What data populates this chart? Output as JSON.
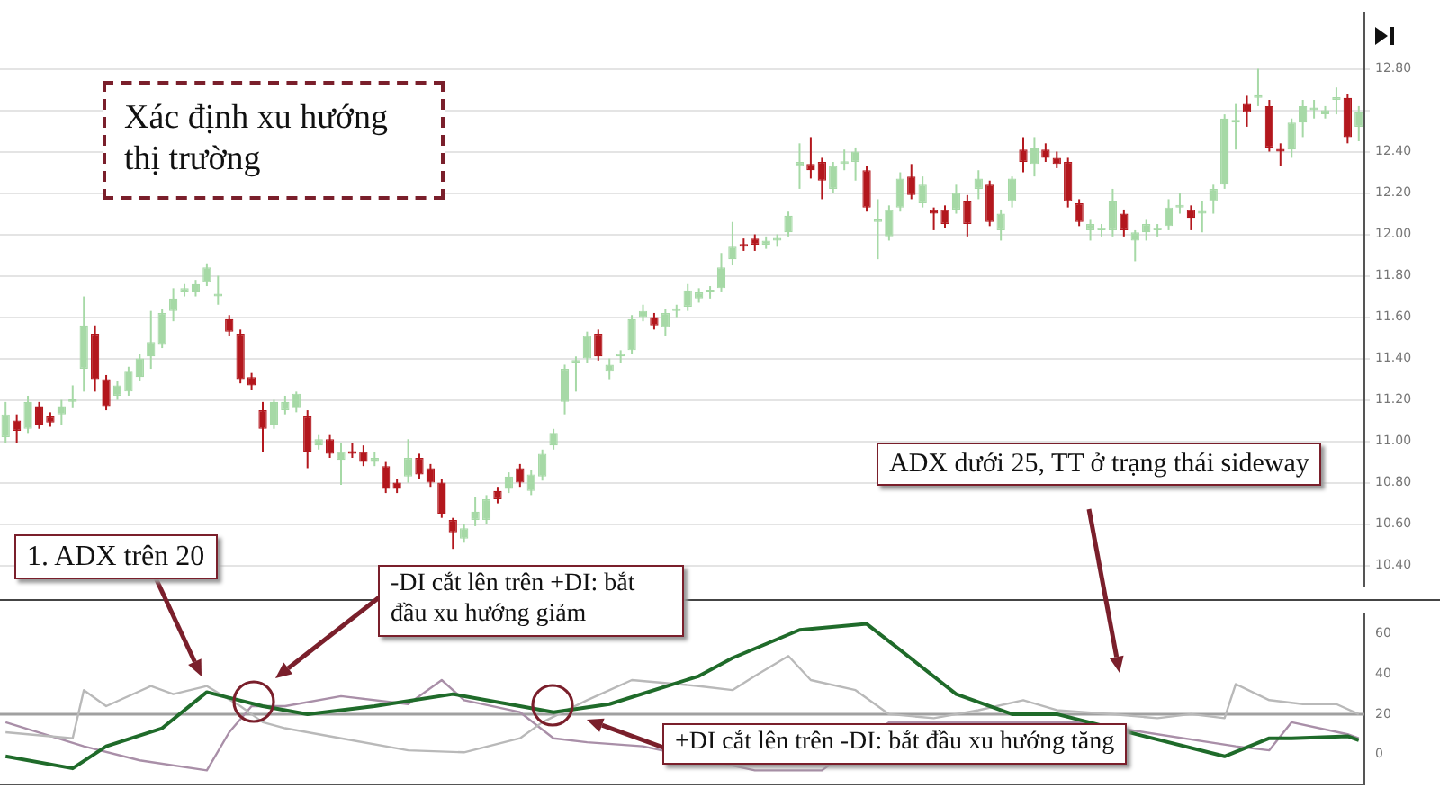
{
  "chart_data": [
    {
      "type": "candlestick",
      "annotations": [
        "Xác định xu hướng thị trường"
      ],
      "categories": [
        null,
        null,
        null,
        null,
        null,
        null,
        null,
        null,
        null,
        null,
        null,
        null,
        null,
        null,
        null,
        null,
        null,
        null,
        null,
        null,
        null,
        null,
        null,
        null,
        null,
        null,
        null,
        null,
        null,
        null,
        null,
        null,
        null,
        null,
        null,
        null,
        null,
        null,
        null,
        null,
        null,
        null,
        null,
        null,
        null,
        null,
        null,
        null,
        null,
        null,
        null,
        null,
        null,
        null,
        null,
        null,
        null,
        null,
        null,
        null,
        null,
        null,
        null,
        null,
        null,
        null,
        null,
        null,
        null,
        null,
        null,
        null,
        null,
        null,
        null,
        null,
        null,
        null,
        null,
        null,
        null,
        null,
        null,
        null,
        null,
        null,
        null,
        null,
        null,
        null,
        null,
        null,
        null,
        null,
        null,
        null,
        null,
        null,
        null,
        null,
        null,
        null,
        null,
        null,
        null,
        null,
        null,
        null,
        null,
        null,
        null,
        null,
        null,
        null,
        null,
        null,
        null,
        null,
        null,
        null,
        null,
        null
      ],
      "ohlc": [
        [
          11.02,
          11.19,
          10.99,
          11.13
        ],
        [
          11.1,
          11.13,
          10.99,
          11.05
        ],
        [
          11.06,
          11.22,
          11.04,
          11.19
        ],
        [
          11.17,
          11.19,
          11.06,
          11.08
        ],
        [
          11.12,
          11.14,
          11.07,
          11.09
        ],
        [
          11.13,
          11.2,
          11.08,
          11.17
        ],
        [
          11.19,
          11.27,
          11.16,
          11.19
        ],
        [
          11.35,
          11.7,
          11.24,
          11.56
        ],
        [
          11.52,
          11.56,
          11.24,
          11.3
        ],
        [
          11.3,
          11.32,
          11.15,
          11.17
        ],
        [
          11.22,
          11.29,
          11.2,
          11.27
        ],
        [
          11.24,
          11.36,
          11.22,
          11.34
        ],
        [
          11.31,
          11.42,
          11.29,
          11.4
        ],
        [
          11.41,
          11.63,
          11.35,
          11.48
        ],
        [
          11.47,
          11.64,
          11.45,
          11.62
        ],
        [
          11.63,
          11.74,
          11.58,
          11.69
        ],
        [
          11.72,
          11.76,
          11.7,
          11.74
        ],
        [
          11.72,
          11.78,
          11.7,
          11.76
        ],
        [
          11.77,
          11.86,
          11.75,
          11.84
        ],
        [
          11.7,
          11.8,
          11.66,
          11.7
        ],
        [
          11.59,
          11.61,
          11.51,
          11.53
        ],
        [
          11.52,
          11.54,
          11.28,
          11.3
        ],
        [
          11.31,
          11.33,
          11.25,
          11.27
        ],
        [
          11.15,
          11.19,
          10.95,
          11.06
        ],
        [
          11.08,
          11.2,
          11.06,
          11.19
        ],
        [
          11.15,
          11.22,
          11.13,
          11.19
        ],
        [
          11.16,
          11.24,
          11.14,
          11.23
        ],
        [
          11.12,
          11.15,
          10.87,
          10.95
        ],
        [
          10.98,
          11.03,
          10.96,
          11.01
        ],
        [
          11.01,
          11.03,
          10.92,
          10.94
        ],
        [
          10.91,
          10.99,
          10.79,
          10.95
        ],
        [
          10.95,
          10.99,
          10.92,
          10.94
        ],
        [
          10.95,
          10.98,
          10.88,
          10.9
        ],
        [
          10.9,
          10.95,
          10.88,
          10.92
        ],
        [
          10.88,
          10.9,
          10.75,
          10.77
        ],
        [
          10.8,
          10.82,
          10.75,
          10.77
        ],
        [
          10.83,
          11.01,
          10.8,
          10.92
        ],
        [
          10.92,
          10.94,
          10.82,
          10.84
        ],
        [
          10.87,
          10.89,
          10.78,
          10.8
        ],
        [
          10.8,
          10.82,
          10.63,
          10.65
        ],
        [
          10.62,
          10.63,
          10.48,
          10.56
        ],
        [
          10.53,
          10.6,
          10.51,
          10.58
        ],
        [
          10.62,
          10.73,
          10.59,
          10.66
        ],
        [
          10.62,
          10.74,
          10.6,
          10.72
        ],
        [
          10.76,
          10.78,
          10.7,
          10.72
        ],
        [
          10.77,
          10.85,
          10.75,
          10.83
        ],
        [
          10.87,
          10.89,
          10.78,
          10.8
        ],
        [
          10.76,
          10.86,
          10.74,
          10.84
        ],
        [
          10.83,
          10.96,
          10.81,
          10.94
        ],
        [
          10.98,
          11.06,
          10.96,
          11.04
        ],
        [
          11.19,
          11.37,
          11.13,
          11.35
        ],
        [
          11.38,
          11.41,
          11.24,
          11.38
        ],
        [
          11.4,
          11.53,
          11.38,
          11.51
        ],
        [
          11.52,
          11.54,
          11.39,
          11.41
        ],
        [
          11.34,
          11.4,
          11.3,
          11.37
        ],
        [
          11.41,
          11.44,
          11.38,
          11.41
        ],
        [
          11.44,
          11.61,
          11.42,
          11.59
        ],
        [
          11.6,
          11.66,
          11.58,
          11.63
        ],
        [
          11.6,
          11.62,
          11.54,
          11.56
        ],
        [
          11.55,
          11.64,
          11.51,
          11.62
        ],
        [
          11.63,
          11.66,
          11.6,
          11.63
        ],
        [
          11.65,
          11.76,
          11.63,
          11.73
        ],
        [
          11.69,
          11.74,
          11.67,
          11.72
        ],
        [
          11.72,
          11.75,
          11.69,
          11.72
        ],
        [
          11.74,
          11.91,
          11.72,
          11.84
        ],
        [
          11.88,
          12.06,
          11.85,
          11.94
        ],
        [
          11.95,
          11.98,
          11.92,
          11.94
        ],
        [
          11.98,
          12.0,
          11.92,
          11.95
        ],
        [
          11.95,
          11.99,
          11.93,
          11.97
        ],
        [
          11.97,
          12.0,
          11.94,
          11.97
        ],
        [
          12.01,
          12.11,
          11.99,
          12.09
        ],
        [
          12.33,
          12.44,
          12.22,
          12.35
        ],
        [
          12.34,
          12.47,
          12.27,
          12.31
        ],
        [
          12.35,
          12.37,
          12.17,
          12.26
        ],
        [
          12.22,
          12.35,
          12.2,
          12.33
        ],
        [
          12.34,
          12.41,
          12.31,
          12.35
        ],
        [
          12.35,
          12.42,
          12.26,
          12.4
        ],
        [
          12.31,
          12.33,
          12.11,
          12.13
        ],
        [
          12.06,
          12.17,
          11.88,
          12.06
        ],
        [
          11.99,
          12.14,
          11.97,
          12.12
        ],
        [
          12.13,
          12.3,
          12.11,
          12.27
        ],
        [
          12.28,
          12.34,
          12.17,
          12.19
        ],
        [
          12.15,
          12.28,
          12.13,
          12.24
        ],
        [
          12.12,
          12.13,
          12.02,
          12.1
        ],
        [
          12.12,
          12.14,
          12.03,
          12.05
        ],
        [
          12.12,
          12.24,
          12.1,
          12.2
        ],
        [
          12.16,
          12.19,
          11.99,
          12.05
        ],
        [
          12.22,
          12.31,
          12.17,
          12.27
        ],
        [
          12.24,
          12.26,
          12.04,
          12.06
        ],
        [
          12.02,
          12.12,
          11.97,
          12.1
        ],
        [
          12.16,
          12.28,
          12.13,
          12.27
        ],
        [
          12.41,
          12.47,
          12.3,
          12.35
        ],
        [
          12.34,
          12.47,
          12.28,
          12.42
        ],
        [
          12.41,
          12.44,
          12.35,
          12.37
        ],
        [
          12.37,
          12.4,
          12.32,
          12.34
        ],
        [
          12.35,
          12.37,
          12.13,
          12.16
        ],
        [
          12.15,
          12.17,
          12.04,
          12.06
        ],
        [
          12.02,
          12.07,
          11.97,
          12.05
        ],
        [
          12.02,
          12.05,
          11.99,
          12.02
        ],
        [
          12.02,
          12.22,
          11.99,
          12.16
        ],
        [
          12.1,
          12.12,
          11.99,
          12.02
        ],
        [
          11.97,
          12.02,
          11.87,
          12.01
        ],
        [
          12.01,
          12.07,
          11.97,
          12.05
        ],
        [
          12.02,
          12.05,
          11.99,
          12.02
        ],
        [
          12.04,
          12.17,
          12.02,
          12.13
        ],
        [
          12.13,
          12.2,
          12.1,
          12.13
        ],
        [
          12.12,
          12.14,
          12.02,
          12.08
        ],
        [
          12.1,
          12.16,
          12.01,
          12.1
        ],
        [
          12.16,
          12.24,
          12.1,
          12.22
        ],
        [
          12.24,
          12.58,
          12.22,
          12.56
        ],
        [
          12.54,
          12.63,
          12.41,
          12.54
        ],
        [
          12.63,
          12.67,
          12.52,
          12.59
        ],
        [
          12.66,
          12.8,
          12.62,
          12.66
        ],
        [
          12.62,
          12.65,
          12.4,
          12.42
        ],
        [
          12.41,
          12.44,
          12.33,
          12.4
        ],
        [
          12.41,
          12.56,
          12.37,
          12.54
        ],
        [
          12.54,
          12.65,
          12.47,
          12.62
        ],
        [
          12.6,
          12.65,
          12.56,
          12.6
        ],
        [
          12.58,
          12.62,
          12.56,
          12.6
        ],
        [
          12.65,
          12.71,
          12.58,
          12.65
        ],
        [
          12.66,
          12.68,
          12.44,
          12.47
        ],
        [
          12.52,
          12.62,
          12.45,
          12.59
        ]
      ],
      "colors": [
        "#a6d9a6",
        "#b3171d",
        "#a6d9a6",
        "#b3171d",
        "#b3171d",
        "#a6d9a6",
        "#a6d9a6",
        "#a6d9a6",
        "#b3171d",
        "#b3171d",
        "#a6d9a6",
        "#a6d9a6",
        "#a6d9a6",
        "#a6d9a6",
        "#a6d9a6",
        "#a6d9a6",
        "#a6d9a6",
        "#a6d9a6",
        "#a6d9a6",
        "#a6d9a6",
        "#b3171d",
        "#b3171d",
        "#b3171d",
        "#b3171d",
        "#a6d9a6",
        "#a6d9a6",
        "#a6d9a6",
        "#b3171d",
        "#a6d9a6",
        "#b3171d",
        "#a6d9a6",
        "#b3171d",
        "#b3171d",
        "#a6d9a6",
        "#b3171d",
        "#b3171d",
        "#a6d9a6",
        "#b3171d",
        "#b3171d",
        "#b3171d",
        "#b3171d",
        "#a6d9a6",
        "#a6d9a6",
        "#a6d9a6",
        "#b3171d",
        "#a6d9a6",
        "#b3171d",
        "#a6d9a6",
        "#a6d9a6",
        "#a6d9a6",
        "#a6d9a6",
        "#a6d9a6",
        "#a6d9a6",
        "#b3171d",
        "#a6d9a6",
        "#a6d9a6",
        "#a6d9a6",
        "#a6d9a6",
        "#b3171d",
        "#a6d9a6",
        "#a6d9a6",
        "#a6d9a6",
        "#a6d9a6",
        "#a6d9a6",
        "#a6d9a6",
        "#a6d9a6",
        "#b3171d",
        "#b3171d",
        "#a6d9a6",
        "#a6d9a6",
        "#a6d9a6",
        "#a6d9a6",
        "#b3171d",
        "#b3171d",
        "#a6d9a6",
        "#a6d9a6",
        "#a6d9a6",
        "#b3171d",
        "#a6d9a6",
        "#a6d9a6",
        "#a6d9a6",
        "#b3171d",
        "#a6d9a6",
        "#b3171d",
        "#b3171d",
        "#a6d9a6",
        "#b3171d",
        "#a6d9a6",
        "#b3171d",
        "#a6d9a6",
        "#a6d9a6",
        "#b3171d",
        "#a6d9a6",
        "#b3171d",
        "#b3171d",
        "#b3171d",
        "#b3171d",
        "#a6d9a6",
        "#a6d9a6",
        "#a6d9a6",
        "#b3171d",
        "#a6d9a6",
        "#a6d9a6",
        "#a6d9a6",
        "#a6d9a6",
        "#a6d9a6",
        "#b3171d",
        "#a6d9a6",
        "#a6d9a6",
        "#a6d9a6",
        "#a6d9a6",
        "#b3171d",
        "#a6d9a6",
        "#b3171d",
        "#b3171d",
        "#a6d9a6",
        "#a6d9a6",
        "#a6d9a6",
        "#a6d9a6",
        "#a6d9a6",
        "#b3171d",
        "#a6d9a6"
      ],
      "ylim": [
        10.3,
        13.07
      ],
      "yticks": [
        {
          "value": 10.4,
          "label": "10.40"
        },
        {
          "value": 10.6,
          "label": "10.60"
        },
        {
          "value": 10.8,
          "label": "10.80"
        },
        {
          "value": 11,
          "label": "11.00"
        },
        {
          "value": 11.2,
          "label": "11.20"
        },
        {
          "value": 11.4,
          "label": "11.40"
        },
        {
          "value": 11.6,
          "label": "11.60"
        },
        {
          "value": 11.8,
          "label": "11.80"
        },
        {
          "value": 12,
          "label": "12.00"
        },
        {
          "value": 12.2,
          "label": "12.20"
        },
        {
          "value": 12.4,
          "label": "12.40"
        },
        {
          "value": 12.6,
          "label": null
        },
        {
          "value": 12.8,
          "label": "12.80"
        }
      ],
      "grid": "y",
      "tick_labels": "y",
      "legend": false
    },
    {
      "type": "line",
      "annotations": [
        "1. ADX trên 20",
        "-DI cắt lên trên +DI: bắt đầu xu hướng giảm",
        "ADX dưới 25, TT ở trạng thái sideway",
        "+DI cắt lên trên -DI: bắt đầu xu hướng tăng"
      ],
      "categories": [
        null,
        null,
        null,
        null,
        null,
        null,
        null,
        null,
        null,
        null,
        null,
        null,
        null,
        null,
        null,
        null,
        null,
        null,
        null,
        null,
        null,
        null,
        null,
        null,
        null,
        null,
        null,
        null,
        null,
        null,
        null,
        null,
        null,
        null,
        null,
        null,
        null,
        null,
        null,
        null,
        null,
        null,
        null,
        null,
        null,
        null,
        null,
        null,
        null,
        null,
        null,
        null,
        null,
        null,
        null,
        null,
        null,
        null,
        null,
        null,
        null,
        null,
        null,
        null,
        null,
        null,
        null,
        null,
        null,
        null,
        null,
        null,
        null,
        null,
        null,
        null,
        null,
        null,
        null,
        null,
        null,
        null,
        null,
        null,
        null,
        null,
        null,
        null,
        null,
        null,
        null,
        null,
        null,
        null,
        null,
        null,
        null,
        null,
        null,
        null,
        null,
        null,
        null,
        null,
        null,
        null,
        null,
        null,
        null,
        null,
        null,
        null,
        null,
        null,
        null,
        null,
        null,
        null,
        null,
        null,
        null,
        null
      ],
      "series": [
        {
          "color": "#1f6b2a",
          "values": [
            -1,
            null,
            null,
            null,
            null,
            null,
            -7,
            null,
            null,
            4,
            null,
            null,
            null,
            null,
            13,
            null,
            null,
            null,
            31,
            null,
            null,
            null,
            null,
            24,
            null,
            null,
            null,
            20,
            null,
            null,
            null,
            null,
            null,
            24,
            null,
            null,
            null,
            null,
            null,
            null,
            30,
            null,
            null,
            null,
            null,
            null,
            24,
            null,
            null,
            21,
            null,
            null,
            null,
            null,
            25,
            null,
            null,
            null,
            null,
            null,
            null,
            null,
            39,
            null,
            null,
            48,
            null,
            null,
            null,
            null,
            null,
            62,
            null,
            null,
            null,
            null,
            null,
            65,
            null,
            null,
            52,
            null,
            null,
            null,
            null,
            30,
            null,
            null,
            null,
            null,
            20,
            null,
            null,
            null,
            20,
            null,
            null,
            null,
            null,
            null,
            null,
            null,
            null,
            null,
            null,
            null,
            null,
            null,
            null,
            -1,
            null,
            null,
            null,
            8,
            null,
            8,
            null,
            null,
            null,
            null,
            9,
            7
          ]
        },
        {
          "color": "#b9b9b9",
          "values": [
            11,
            null,
            null,
            null,
            null,
            null,
            8,
            32,
            null,
            24,
            null,
            null,
            null,
            34,
            null,
            30,
            null,
            null,
            34,
            null,
            null,
            24,
            null,
            16,
            null,
            13,
            null,
            null,
            null,
            null,
            8,
            null,
            null,
            null,
            null,
            null,
            2,
            null,
            null,
            null,
            null,
            1,
            null,
            null,
            null,
            null,
            8,
            null,
            16,
            null,
            null,
            null,
            27,
            null,
            null,
            null,
            37,
            null,
            null,
            null,
            null,
            null,
            34,
            null,
            null,
            32,
            null,
            39,
            null,
            null,
            49,
            null,
            37,
            null,
            null,
            null,
            32,
            null,
            null,
            20,
            null,
            null,
            null,
            18,
            null,
            null,
            null,
            22,
            null,
            null,
            null,
            27,
            null,
            null,
            22,
            null,
            null,
            null,
            null,
            20,
            null,
            null,
            null,
            18,
            null,
            null,
            20,
            null,
            null,
            18,
            35,
            null,
            null,
            27,
            null,
            null,
            25,
            null,
            null,
            25,
            null,
            20
          ]
        },
        {
          "color": "#a98fa8",
          "values": [
            16,
            null,
            null,
            null,
            null,
            null,
            null,
            4,
            null,
            null,
            null,
            null,
            -3,
            null,
            null,
            null,
            null,
            null,
            -8,
            null,
            11,
            null,
            24,
            null,
            null,
            24,
            null,
            null,
            null,
            null,
            29,
            null,
            null,
            null,
            null,
            null,
            25,
            null,
            null,
            37,
            null,
            27,
            null,
            null,
            null,
            null,
            21,
            null,
            null,
            8,
            null,
            null,
            6,
            null,
            null,
            null,
            null,
            4,
            null,
            null,
            null,
            null,
            null,
            null,
            null,
            null,
            null,
            -8,
            null,
            null,
            null,
            null,
            null,
            -8,
            null,
            null,
            null,
            null,
            null,
            16,
            null,
            null,
            null,
            null,
            null,
            null,
            null,
            null,
            null,
            null,
            null,
            null,
            null,
            null,
            null,
            null,
            16,
            null,
            null,
            null,
            null,
            null,
            null,
            null,
            null,
            null,
            null,
            null,
            null,
            null,
            4,
            null,
            null,
            2,
            null,
            16,
            null,
            null,
            null,
            null,
            10,
            8
          ]
        }
      ],
      "ylim": [
        -15,
        70
      ],
      "yticks": [
        0,
        20,
        40,
        60
      ],
      "ref_lines": [
        {
          "axis": "y",
          "value": 20,
          "color": "#a0a0a0"
        }
      ],
      "grid": false,
      "tick_labels": "y",
      "legend": false
    }
  ]
}
